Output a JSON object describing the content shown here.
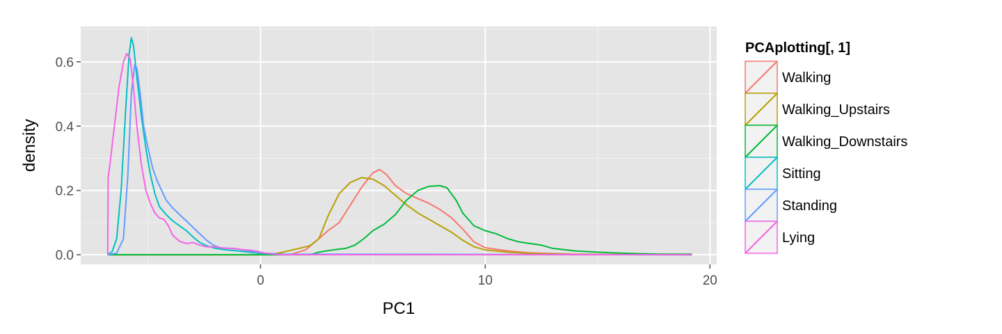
{
  "chart_data": {
    "type": "line",
    "title": "",
    "xlabel": "PC1",
    "ylabel": "density",
    "xlim": [
      -8.0,
      20.3
    ],
    "ylim": [
      -0.03,
      0.71
    ],
    "x_ticks": [
      0,
      10,
      20
    ],
    "x_tick_labels": [
      "0",
      "10",
      "20"
    ],
    "y_ticks": [
      0.0,
      0.2,
      0.4,
      0.6
    ],
    "y_tick_labels": [
      "0.0",
      "0.2",
      "0.4",
      "0.6"
    ],
    "grid": true,
    "legend": {
      "title": "PCAplotting[, 1]",
      "position": "right"
    },
    "series": [
      {
        "name": "Walking",
        "color": "#F8766D",
        "points": [
          [
            -6.8,
            0
          ],
          [
            1.3,
            0
          ],
          [
            2.0,
            0.015
          ],
          [
            2.6,
            0.05
          ],
          [
            3.0,
            0.075
          ],
          [
            3.5,
            0.1
          ],
          [
            4.0,
            0.155
          ],
          [
            4.5,
            0.21
          ],
          [
            5.0,
            0.255
          ],
          [
            5.3,
            0.265
          ],
          [
            5.6,
            0.25
          ],
          [
            6.0,
            0.215
          ],
          [
            6.5,
            0.19
          ],
          [
            7.0,
            0.175
          ],
          [
            7.5,
            0.16
          ],
          [
            8.0,
            0.14
          ],
          [
            8.5,
            0.115
          ],
          [
            9.0,
            0.08
          ],
          [
            9.5,
            0.04
          ],
          [
            10.0,
            0.022
          ],
          [
            11.0,
            0.012
          ],
          [
            12.0,
            0.006
          ],
          [
            14.0,
            0.002
          ],
          [
            16.0,
            0.001
          ],
          [
            19.2,
            0
          ]
        ]
      },
      {
        "name": "Walking_Upstairs",
        "color": "#B79F00",
        "points": [
          [
            -6.8,
            0
          ],
          [
            0.4,
            0
          ],
          [
            1.0,
            0.008
          ],
          [
            1.6,
            0.018
          ],
          [
            2.2,
            0.028
          ],
          [
            2.6,
            0.05
          ],
          [
            3.0,
            0.12
          ],
          [
            3.5,
            0.19
          ],
          [
            4.0,
            0.225
          ],
          [
            4.5,
            0.24
          ],
          [
            5.0,
            0.235
          ],
          [
            5.5,
            0.215
          ],
          [
            6.0,
            0.185
          ],
          [
            6.5,
            0.155
          ],
          [
            7.0,
            0.13
          ],
          [
            7.5,
            0.11
          ],
          [
            8.0,
            0.09
          ],
          [
            8.5,
            0.07
          ],
          [
            9.0,
            0.045
          ],
          [
            9.5,
            0.025
          ],
          [
            10.0,
            0.015
          ],
          [
            11.0,
            0.008
          ],
          [
            12.0,
            0.004
          ],
          [
            14.0,
            0.001
          ],
          [
            19.2,
            0
          ]
        ]
      },
      {
        "name": "Walking_Downstairs",
        "color": "#00BA38",
        "points": [
          [
            -6.8,
            0
          ],
          [
            2.2,
            0
          ],
          [
            2.6,
            0.008
          ],
          [
            3.2,
            0.015
          ],
          [
            3.8,
            0.02
          ],
          [
            4.2,
            0.03
          ],
          [
            4.6,
            0.05
          ],
          [
            5.0,
            0.075
          ],
          [
            5.5,
            0.095
          ],
          [
            6.0,
            0.125
          ],
          [
            6.5,
            0.17
          ],
          [
            7.0,
            0.2
          ],
          [
            7.5,
            0.213
          ],
          [
            8.0,
            0.215
          ],
          [
            8.3,
            0.208
          ],
          [
            8.7,
            0.17
          ],
          [
            9.0,
            0.13
          ],
          [
            9.5,
            0.09
          ],
          [
            10.0,
            0.075
          ],
          [
            10.5,
            0.065
          ],
          [
            11.0,
            0.05
          ],
          [
            11.5,
            0.04
          ],
          [
            12.0,
            0.035
          ],
          [
            12.5,
            0.03
          ],
          [
            13.0,
            0.02
          ],
          [
            14.0,
            0.012
          ],
          [
            15.0,
            0.008
          ],
          [
            16.0,
            0.005
          ],
          [
            17.0,
            0.003
          ],
          [
            18.0,
            0.002
          ],
          [
            19.2,
            0.002
          ]
        ]
      },
      {
        "name": "Sitting",
        "color": "#00BFC4",
        "points": [
          [
            -6.8,
            0
          ],
          [
            -6.6,
            0.01
          ],
          [
            -6.4,
            0.05
          ],
          [
            -6.2,
            0.2
          ],
          [
            -6.0,
            0.45
          ],
          [
            -5.85,
            0.62
          ],
          [
            -5.75,
            0.675
          ],
          [
            -5.65,
            0.65
          ],
          [
            -5.5,
            0.55
          ],
          [
            -5.3,
            0.43
          ],
          [
            -5.1,
            0.33
          ],
          [
            -4.9,
            0.25
          ],
          [
            -4.7,
            0.19
          ],
          [
            -4.5,
            0.15
          ],
          [
            -4.2,
            0.125
          ],
          [
            -3.9,
            0.105
          ],
          [
            -3.6,
            0.09
          ],
          [
            -3.3,
            0.075
          ],
          [
            -3.0,
            0.055
          ],
          [
            -2.7,
            0.038
          ],
          [
            -2.4,
            0.028
          ],
          [
            -2.0,
            0.02
          ],
          [
            -1.5,
            0.015
          ],
          [
            -1.0,
            0.012
          ],
          [
            -0.5,
            0.008
          ],
          [
            0,
            0.004
          ],
          [
            1,
            0.001
          ],
          [
            19.2,
            0
          ]
        ]
      },
      {
        "name": "Standing",
        "color": "#619CFF",
        "points": [
          [
            -6.8,
            0
          ],
          [
            -6.4,
            0.005
          ],
          [
            -6.1,
            0.05
          ],
          [
            -5.9,
            0.25
          ],
          [
            -5.75,
            0.5
          ],
          [
            -5.6,
            0.59
          ],
          [
            -5.5,
            0.58
          ],
          [
            -5.35,
            0.5
          ],
          [
            -5.2,
            0.4
          ],
          [
            -5.0,
            0.33
          ],
          [
            -4.8,
            0.27
          ],
          [
            -4.6,
            0.23
          ],
          [
            -4.4,
            0.2
          ],
          [
            -4.2,
            0.17
          ],
          [
            -3.9,
            0.145
          ],
          [
            -3.6,
            0.125
          ],
          [
            -3.3,
            0.105
          ],
          [
            -3.0,
            0.085
          ],
          [
            -2.7,
            0.065
          ],
          [
            -2.4,
            0.045
          ],
          [
            -2.1,
            0.03
          ],
          [
            -1.8,
            0.022
          ],
          [
            -1.4,
            0.02
          ],
          [
            -1.0,
            0.018
          ],
          [
            -0.5,
            0.012
          ],
          [
            0,
            0.006
          ],
          [
            1,
            0.002
          ],
          [
            19.2,
            0
          ]
        ]
      },
      {
        "name": "Lying",
        "color": "#F564E3",
        "points": [
          [
            -6.8,
            0
          ],
          [
            -6.78,
            0.24
          ],
          [
            -6.7,
            0.28
          ],
          [
            -6.5,
            0.4
          ],
          [
            -6.3,
            0.52
          ],
          [
            -6.1,
            0.6
          ],
          [
            -5.95,
            0.625
          ],
          [
            -5.8,
            0.61
          ],
          [
            -5.65,
            0.52
          ],
          [
            -5.5,
            0.4
          ],
          [
            -5.3,
            0.28
          ],
          [
            -5.1,
            0.2
          ],
          [
            -4.9,
            0.16
          ],
          [
            -4.7,
            0.13
          ],
          [
            -4.5,
            0.115
          ],
          [
            -4.3,
            0.11
          ],
          [
            -4.1,
            0.09
          ],
          [
            -3.9,
            0.06
          ],
          [
            -3.6,
            0.042
          ],
          [
            -3.3,
            0.035
          ],
          [
            -3.0,
            0.038
          ],
          [
            -2.7,
            0.03
          ],
          [
            -2.4,
            0.025
          ],
          [
            -2.0,
            0.025
          ],
          [
            -1.6,
            0.02
          ],
          [
            -1.2,
            0.02
          ],
          [
            -0.8,
            0.016
          ],
          [
            -0.4,
            0.014
          ],
          [
            -0.1,
            0.01
          ],
          [
            0.2,
            0.005
          ],
          [
            0.6,
            0.002
          ],
          [
            1,
            0
          ],
          [
            19.2,
            0
          ]
        ]
      }
    ]
  }
}
